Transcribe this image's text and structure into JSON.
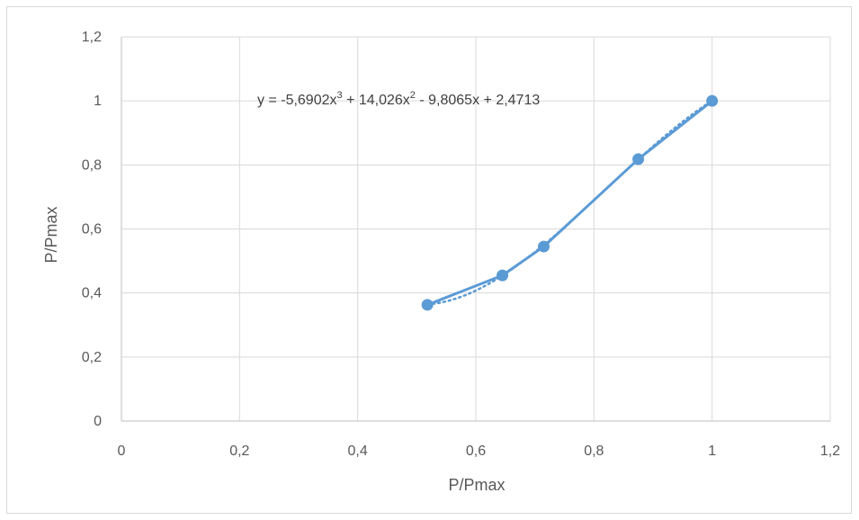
{
  "chart_data": {
    "type": "scatter",
    "title": "",
    "xlabel": "P/Pmax",
    "ylabel": "P/Pmax",
    "xlim": [
      0,
      1.2
    ],
    "ylim": [
      0,
      1.2
    ],
    "xticks": [
      "0",
      "0,2",
      "0,4",
      "0,6",
      "0,8",
      "1",
      "1,2"
    ],
    "yticks": [
      "0",
      "0,2",
      "0,4",
      "0,6",
      "0,8",
      "1",
      "1,2"
    ],
    "grid": true,
    "series": [
      {
        "x": [
          0.518,
          0.645,
          0.715,
          0.875,
          1.0
        ],
        "y": [
          0.363,
          0.455,
          0.545,
          0.818,
          1.0
        ],
        "color": "#5b9bd5",
        "line": "solid",
        "markers": "circle"
      }
    ],
    "trendline": {
      "type": "polynomial",
      "order": 3,
      "coefficients": [
        -5.6902,
        14.026,
        -9.8065,
        2.4713
      ],
      "style": "dotted",
      "color": "#5b9bd5",
      "x_range": [
        0.518,
        1.0
      ]
    },
    "annotations": {
      "equation": {
        "p1": "y = -5,6902x",
        "sup1": "3",
        "p2": " + 14,026x",
        "sup2": "2",
        "p3": " - 9,8065x + 2,4713"
      }
    }
  }
}
